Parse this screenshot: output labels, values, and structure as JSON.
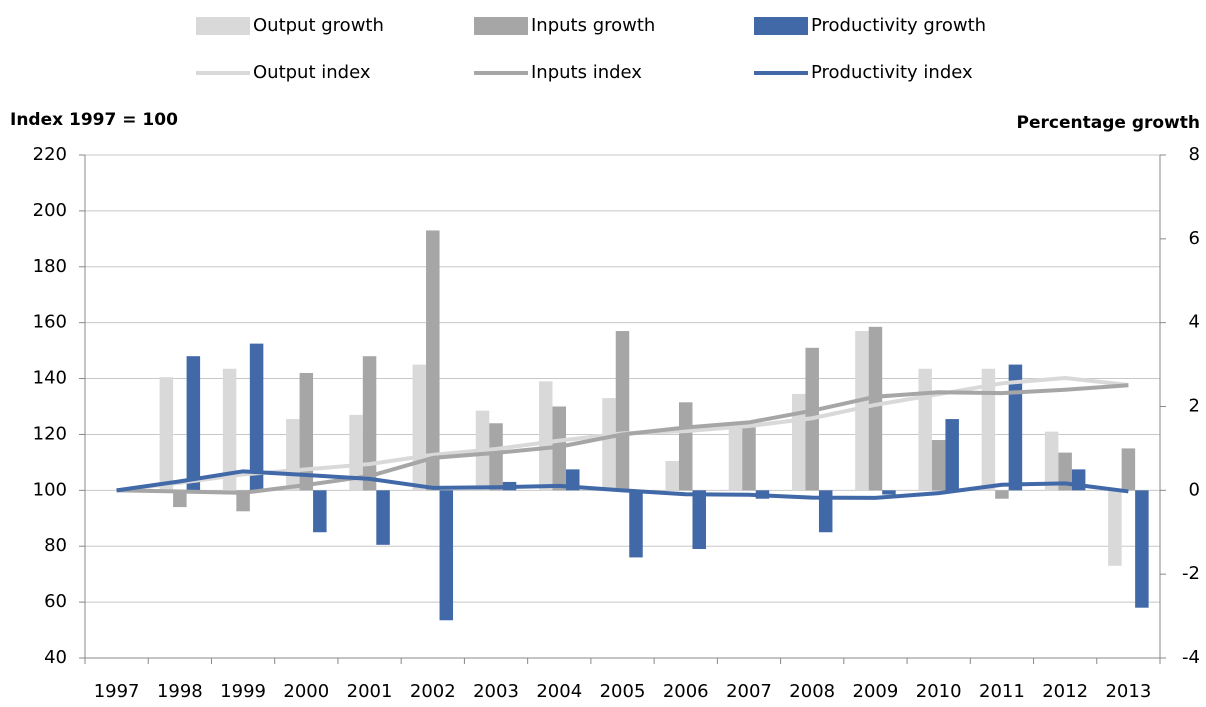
{
  "chart_data": {
    "type": "combo",
    "y_label": "Index 1997 = 100",
    "y2_label": "Percentage growth",
    "categories": [
      "1997",
      "1998",
      "1999",
      "2000",
      "2001",
      "2002",
      "2003",
      "2004",
      "2005",
      "2006",
      "2007",
      "2008",
      "2009",
      "2010",
      "2011",
      "2012",
      "2013"
    ],
    "ylim": [
      40,
      220
    ],
    "yticks": [
      40,
      60,
      80,
      100,
      120,
      140,
      160,
      180,
      200,
      220
    ],
    "y2lim": [
      -4,
      8
    ],
    "y2ticks": [
      -4,
      -2,
      0,
      2,
      4,
      6,
      8
    ],
    "grid": true,
    "series": [
      {
        "name": "Output growth",
        "kind": "bar",
        "axis": "y2",
        "color": "#d9d9d9",
        "values": [
          null,
          2.7,
          2.9,
          1.7,
          1.8,
          3.0,
          1.9,
          2.6,
          2.2,
          0.7,
          1.5,
          2.3,
          3.8,
          2.9,
          2.9,
          1.4,
          -1.8
        ]
      },
      {
        "name": "Inputs growth",
        "kind": "bar",
        "axis": "y2",
        "color": "#a6a6a6",
        "values": [
          null,
          -0.4,
          -0.5,
          2.8,
          3.2,
          6.2,
          1.6,
          2.0,
          3.8,
          2.1,
          1.5,
          3.4,
          3.9,
          1.2,
          -0.2,
          0.9,
          1.0
        ]
      },
      {
        "name": "Productivity growth",
        "kind": "bar",
        "axis": "y2",
        "color": "#4169a8",
        "values": [
          null,
          3.2,
          3.5,
          -1.0,
          -1.3,
          -3.1,
          0.2,
          0.5,
          -1.6,
          -1.4,
          -0.2,
          -1.0,
          -0.1,
          1.7,
          3.0,
          0.5,
          -2.8
        ]
      },
      {
        "name": "Output index",
        "kind": "line",
        "color": "#d9d9d9",
        "values": [
          100,
          102.7,
          105.7,
          107.5,
          109.4,
          112.7,
          114.8,
          117.8,
          120.4,
          121.2,
          123,
          125.8,
          130.6,
          134.4,
          138.3,
          140.2,
          137.7
        ]
      },
      {
        "name": "Inputs index",
        "kind": "line",
        "color": "#a6a6a6",
        "values": [
          100,
          99.6,
          99.1,
          101.9,
          105.1,
          111.6,
          113.4,
          115.6,
          120,
          122.5,
          124.3,
          128.5,
          133.5,
          135.1,
          134.8,
          136,
          137.6
        ]
      },
      {
        "name": "Productivity index",
        "kind": "line",
        "color": "#4169a8",
        "values": [
          100,
          103.2,
          106.8,
          105.5,
          104.1,
          100.9,
          101.1,
          101.6,
          100,
          98.6,
          98.4,
          97.4,
          97.3,
          99,
          102,
          102.5,
          99.6
        ]
      }
    ]
  }
}
